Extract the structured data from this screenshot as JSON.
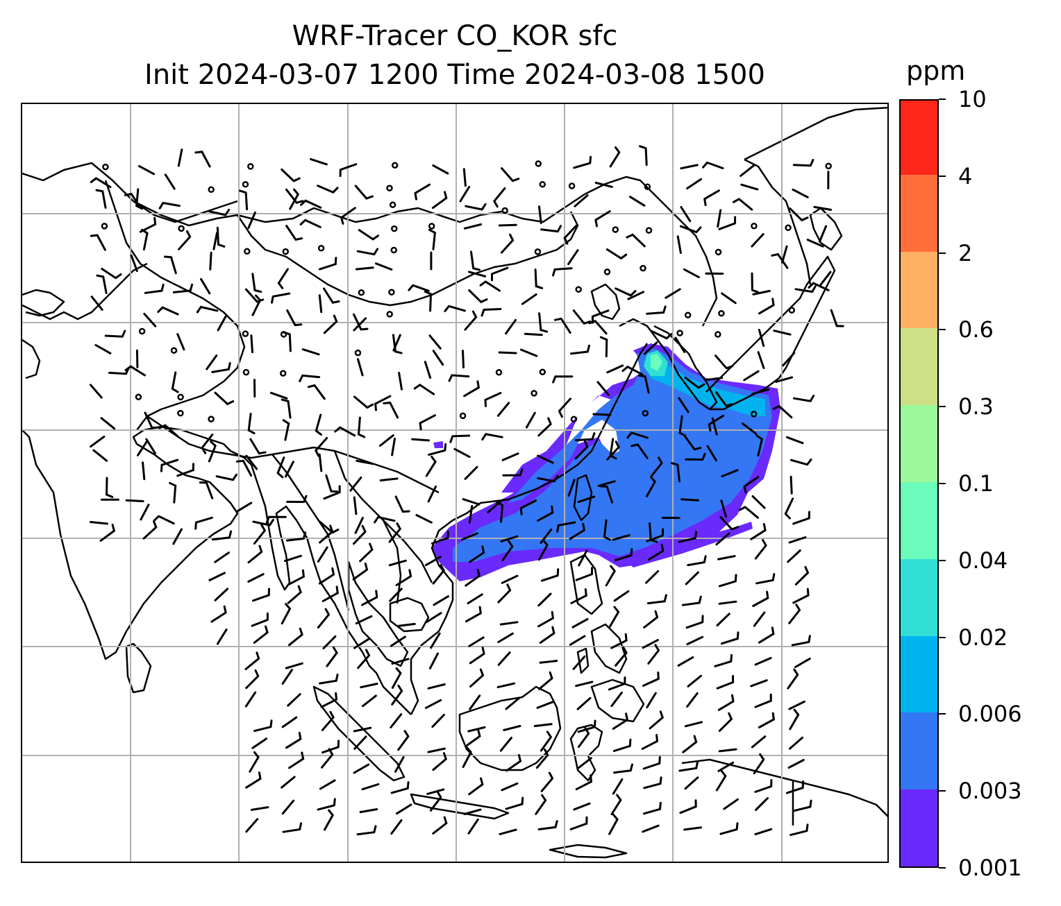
{
  "figure": {
    "title_line1": "WRF-Tracer CO_KOR sfc",
    "title_line2": "Init 2024-03-07 1200 Time 2024-03-08 1500"
  },
  "map": {
    "variable": "CO_KOR tracer",
    "level": "sfc",
    "gridlines": true,
    "coastlines": true,
    "wind_barbs": true,
    "plume_region": "East Asia, Korea east toward Pacific, south to Taiwan"
  },
  "colorbar": {
    "units": "ppm",
    "levels": [
      "0.001",
      "0.003",
      "0.006",
      "0.02",
      "0.04",
      "0.1",
      "0.3",
      "0.6",
      "2",
      "4",
      "10"
    ],
    "colors": [
      "#6a2afc",
      "#3477f4",
      "#00b3ee",
      "#30e0d4",
      "#6cfcbc",
      "#9bf99b",
      "#cde086",
      "#feb162",
      "#ff6e3b",
      "#fd281a"
    ]
  }
}
